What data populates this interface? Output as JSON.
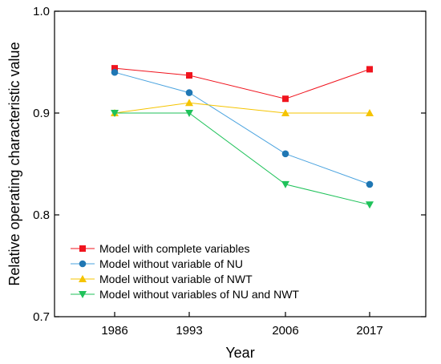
{
  "chart_data": {
    "type": "line",
    "categories": [
      "1986",
      "1993",
      "2006",
      "2017"
    ],
    "xlabel": "Year",
    "ylabel": "Relative operating characteristic value",
    "ylim": [
      0.7,
      1.0
    ],
    "yticks": [
      "0.7",
      "0.8",
      "0.9",
      "1.0"
    ],
    "grid": false,
    "legend_position": "bottom-left",
    "series": [
      {
        "name": "Model with complete variables",
        "color": "#f0141e",
        "marker": "square",
        "values": [
          0.944,
          0.937,
          0.914,
          0.943
        ]
      },
      {
        "name": "Model without variable of NU",
        "color": "#1f77b4",
        "line_color": "#4aa3df",
        "marker": "circle",
        "values": [
          0.94,
          0.92,
          0.86,
          0.83
        ]
      },
      {
        "name": "Model without variable of NWT",
        "color": "#f5c400",
        "marker": "triangle-up",
        "values": [
          0.9,
          0.91,
          0.9,
          0.9
        ]
      },
      {
        "name": "Model without variables of NU and NWT",
        "color": "#1fc25a",
        "marker": "triangle-down",
        "values": [
          0.9,
          0.9,
          0.83,
          0.81
        ]
      }
    ]
  }
}
